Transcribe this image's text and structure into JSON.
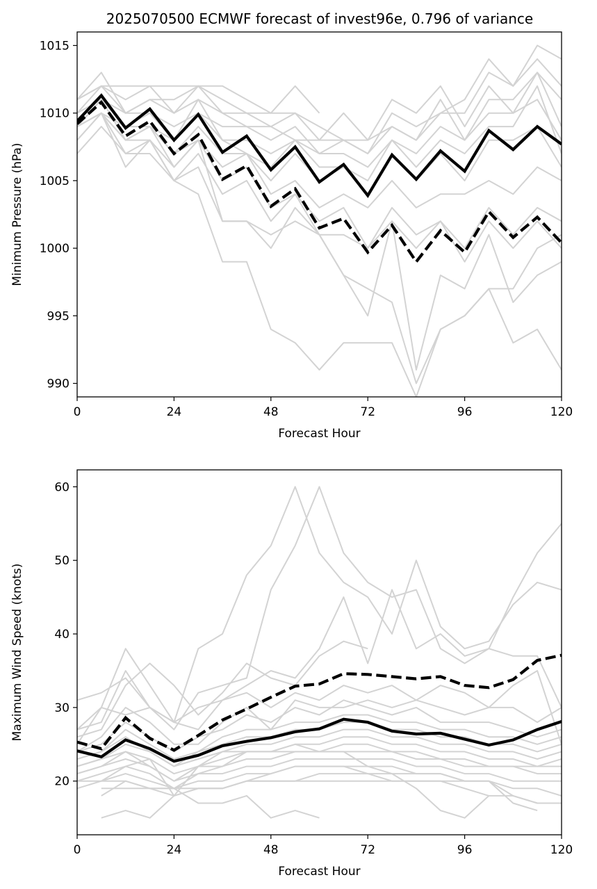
{
  "figure": {
    "title": "2025070500 ECMWF forecast of invest96e, 0.796 of variance"
  },
  "chart_data": [
    {
      "type": "line",
      "title": "2025070500 ECMWF forecast of invest96e, 0.796 of variance",
      "xlabel": "Forecast Hour",
      "ylabel": "Minimum Pressure (hPa)",
      "xlim": [
        0,
        120
      ],
      "ylim": [
        989,
        1016
      ],
      "xticks": [
        0,
        24,
        48,
        72,
        96,
        120
      ],
      "yticks": [
        990,
        995,
        1000,
        1005,
        1010,
        1015
      ],
      "grid": false,
      "colors": {
        "member": "#d3d3d3",
        "highlight": "#000000"
      },
      "x": [
        0,
        6,
        12,
        18,
        24,
        30,
        36,
        42,
        48,
        54,
        60,
        66,
        72,
        78,
        84,
        90,
        96,
        102,
        108,
        114,
        120
      ],
      "members": [
        [
          1011,
          1012,
          1012,
          1012,
          1012,
          1012,
          1012,
          1011,
          1010,
          1012,
          1010
        ],
        [
          1011,
          1013,
          1010,
          1011,
          1011,
          1012,
          1010,
          1010,
          1010,
          1010,
          1009,
          1008,
          1008,
          1009,
          1008,
          1010,
          1011,
          1014,
          1012,
          1015,
          1014
        ],
        [
          1011,
          1012,
          1011,
          1012,
          1010,
          1012,
          1011,
          1010,
          1009,
          1010,
          1008,
          1008,
          1007,
          1010,
          1009,
          1010,
          1010,
          1013,
          1012,
          1014,
          1012
        ],
        [
          1010,
          1012,
          1010,
          1011,
          1010,
          1011,
          1010,
          1009,
          1009,
          1008,
          1008,
          1010,
          1008,
          1011,
          1010,
          1012,
          1009,
          1012,
          1010,
          1013,
          1011
        ],
        [
          1010,
          1011,
          1010,
          1010,
          1009,
          1010,
          1009,
          1009,
          1008,
          1009,
          1007,
          1008,
          1007,
          1009,
          1008,
          1011,
          1008,
          1011,
          1011,
          1013,
          1009
        ],
        [
          1009,
          1011,
          1009,
          1010,
          1008,
          1011,
          1008,
          1008,
          1007,
          1008,
          1007,
          1007,
          1006,
          1008,
          1007,
          1009,
          1008,
          1010,
          1010,
          1011,
          1008
        ],
        [
          1009,
          1010,
          1009,
          1009,
          1008,
          1010,
          1008,
          1007,
          1006,
          1008,
          1006,
          1006,
          1005,
          1008,
          1006,
          1008,
          1007,
          1009,
          1009,
          1012,
          1007
        ],
        [
          1009,
          1010,
          1008,
          1009,
          1007,
          1009,
          1007,
          1007,
          1005,
          1007,
          1005,
          1006,
          1004,
          1007,
          1005,
          1007,
          1005,
          1008,
          1008,
          1009,
          1006
        ],
        [
          1009,
          1011,
          1009,
          1009,
          1007,
          1008,
          1006,
          1007,
          1004,
          1005,
          1003,
          1004,
          1003,
          1005,
          1003,
          1004,
          1004,
          1005,
          1004,
          1006,
          1005
        ],
        [
          1009,
          1011,
          1008,
          1009,
          1006,
          1008,
          1005,
          1006,
          1003,
          1004,
          1002,
          1003,
          1000,
          1003,
          1001,
          1002,
          1000,
          1003,
          1001,
          1003,
          1002
        ],
        [
          1008,
          1010,
          1006,
          1008,
          1005,
          1007,
          1004,
          1005,
          1002,
          1004,
          1001,
          1001,
          1000,
          1002,
          1000,
          1002,
          999,
          1002,
          1000,
          1002,
          1000
        ],
        [
          1008,
          1010,
          1007,
          1008,
          1006,
          1008,
          1002,
          1002,
          1001,
          1002,
          1001,
          998,
          995,
          1002,
          991,
          998,
          997,
          1001,
          996,
          998,
          999
        ],
        [
          1007,
          1009,
          1007,
          1007,
          1005,
          1006,
          1002,
          1002,
          1000,
          1003,
          1001,
          998,
          997,
          996,
          990,
          994,
          995,
          997,
          997,
          1000,
          1001
        ],
        [
          1009,
          1010,
          1008,
          1008,
          1005,
          1004,
          999,
          999,
          994,
          993,
          991,
          993,
          993,
          993,
          989,
          994,
          995,
          997,
          993,
          994,
          991
        ]
      ],
      "series": [
        {
          "name": "",
          "style": "solid",
          "values": [
            1009.4,
            1011.3,
            1008.9,
            1010.3,
            1008.0,
            1009.9,
            1007.1,
            1008.3,
            1005.8,
            1007.5,
            1004.9,
            1006.2,
            1003.9,
            1006.9,
            1005.1,
            1007.2,
            1005.7,
            1008.7,
            1007.3,
            1009.0,
            1007.7
          ]
        },
        {
          "name": "",
          "style": "dashed",
          "values": [
            1009.2,
            1010.8,
            1008.3,
            1009.4,
            1007.0,
            1008.4,
            1005.1,
            1006.1,
            1003.1,
            1004.4,
            1001.5,
            1002.2,
            999.7,
            1001.7,
            999.0,
            1001.3,
            999.7,
            1002.7,
            1000.8,
            1002.3,
            1000.4
          ]
        }
      ]
    },
    {
      "type": "line",
      "title": "",
      "xlabel": "Forecast Hour",
      "ylabel": "Maximum Wind Speed (knots)",
      "xlim": [
        0,
        120
      ],
      "ylim": [
        12.7,
        62.3
      ],
      "xticks": [
        0,
        24,
        48,
        72,
        96,
        120
      ],
      "yticks": [
        20,
        30,
        40,
        50,
        60
      ],
      "grid": false,
      "colors": {
        "member": "#d3d3d3",
        "highlight": "#000000"
      },
      "x": [
        0,
        6,
        12,
        18,
        24,
        30,
        36,
        42,
        48,
        54,
        60,
        66,
        72,
        78,
        84,
        90,
        96,
        102,
        108,
        114,
        120
      ],
      "members": [
        [
          31,
          32,
          34,
          30,
          27,
          32,
          33,
          34,
          46,
          52,
          60,
          51,
          47,
          45,
          46,
          38,
          36,
          38,
          45,
          51,
          55
        ],
        [
          27,
          30,
          38,
          33,
          28,
          38,
          40,
          48,
          52,
          60,
          51,
          47,
          45,
          40,
          50,
          41,
          38,
          39,
          44,
          47,
          46
        ],
        [
          27,
          28,
          35,
          30,
          28,
          30,
          31,
          33,
          35,
          34,
          38,
          45,
          36,
          46,
          38,
          40,
          37,
          38,
          37,
          37,
          30
        ],
        [
          26,
          27,
          33,
          36,
          33,
          29,
          32,
          36,
          34,
          33,
          37,
          39,
          38
        ],
        [
          25,
          30,
          29,
          30,
          28,
          27,
          31,
          32,
          30,
          32,
          31,
          33,
          32,
          33,
          31,
          33,
          32,
          30,
          33,
          35,
          25
        ],
        [
          24,
          26,
          30,
          28,
          25,
          25,
          28,
          30,
          27,
          31,
          30,
          30,
          31,
          30,
          31,
          30,
          29,
          30,
          30,
          28,
          30
        ],
        [
          24,
          25,
          28,
          26,
          24,
          26,
          27,
          29,
          28,
          30,
          29,
          31,
          30,
          29,
          30,
          28,
          28,
          28,
          27,
          26,
          27
        ],
        [
          23,
          24,
          27,
          25,
          23,
          24,
          26,
          27,
          27,
          28,
          28,
          29,
          29,
          28,
          28,
          27,
          27,
          26,
          26,
          25,
          26
        ],
        [
          23,
          24,
          26,
          24,
          22,
          24,
          25,
          26,
          26,
          27,
          27,
          28,
          28,
          27,
          27,
          26,
          26,
          25,
          25,
          24,
          25
        ],
        [
          22,
          23,
          25,
          24,
          22,
          23,
          24,
          25,
          25,
          26,
          26,
          27,
          27,
          26,
          26,
          25,
          25,
          24,
          24,
          23,
          24
        ],
        [
          22,
          23,
          24,
          23,
          21,
          22,
          24,
          24,
          24,
          25,
          25,
          26,
          26,
          25,
          25,
          24,
          24,
          23,
          23,
          22,
          23
        ],
        [
          21,
          22,
          24,
          22,
          20,
          22,
          23,
          24,
          24,
          25,
          24,
          25,
          25,
          24,
          24,
          23,
          23,
          22,
          22,
          22,
          22
        ],
        [
          21,
          22,
          23,
          22,
          20,
          21,
          22,
          23,
          23,
          24,
          24,
          24,
          24,
          24,
          23,
          23,
          22,
          22,
          22,
          21,
          21
        ],
        [
          20,
          21,
          22,
          21,
          19,
          21,
          21,
          22,
          22,
          23,
          23,
          23,
          23,
          23,
          22,
          22,
          21,
          21,
          20,
          20,
          20
        ],
        [
          20,
          20,
          21,
          20,
          19,
          20,
          20,
          21,
          21,
          22,
          22,
          22,
          22,
          21,
          21,
          21,
          20,
          20,
          19,
          19,
          18
        ],
        [
          19,
          20,
          20,
          19,
          18,
          19,
          19,
          20,
          20,
          20,
          21,
          21,
          21,
          20,
          20,
          20,
          19,
          18,
          18,
          17,
          17
        ],
        [
          null,
          19,
          19,
          19,
          19,
          19,
          19,
          20,
          20,
          20,
          20,
          20,
          20,
          20,
          20,
          20,
          20,
          20,
          18,
          17,
          17
        ],
        [
          null,
          18,
          20,
          19,
          19,
          17,
          17,
          18,
          15,
          16,
          15
        ],
        [
          null,
          15,
          16,
          15,
          18,
          19,
          19,
          20,
          21,
          22,
          22,
          22,
          21,
          21,
          19,
          16,
          15,
          18
        ],
        [
          null,
          20,
          22,
          23,
          18,
          22,
          22,
          24,
          24,
          24,
          24,
          24,
          22,
          22,
          21,
          21,
          20,
          20,
          17,
          16
        ]
      ],
      "series": [
        {
          "name": "",
          "style": "solid",
          "values": [
            24.1,
            23.3,
            25.6,
            24.4,
            22.7,
            23.5,
            24.8,
            25.4,
            25.9,
            26.7,
            27.1,
            28.4,
            28.0,
            26.8,
            26.4,
            26.5,
            25.7,
            24.9,
            25.6,
            27.0,
            28.1
          ]
        },
        {
          "name": "",
          "style": "dashed",
          "values": [
            25.3,
            24.4,
            28.6,
            25.8,
            24.2,
            26.2,
            28.3,
            29.8,
            31.4,
            32.9,
            33.2,
            34.6,
            34.5,
            34.2,
            33.9,
            34.2,
            33.0,
            32.7,
            33.8,
            36.4,
            37.1
          ]
        }
      ]
    }
  ]
}
